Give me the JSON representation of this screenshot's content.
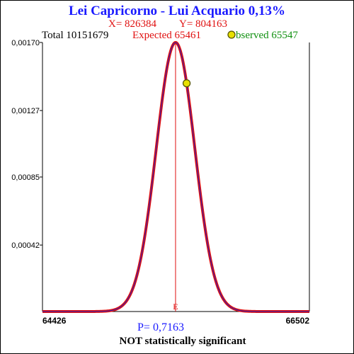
{
  "chart_data": {
    "type": "line",
    "title": "Lei Capricorno - Lui Acquario  0,13%",
    "x_label_text": "X= 826384",
    "y_label_text": "Y= 804163",
    "total_label": "Total  10151679",
    "expected_label": "Expected  65461",
    "observed_label": "bserved  65547",
    "mean": 65461,
    "sd": 150,
    "observed_x": 65547,
    "xlim": [
      64426,
      66502
    ],
    "ylim": [
      0,
      0.0017
    ],
    "yticks": [
      "0,00170",
      "0,00127",
      "0,00085",
      "0,00042"
    ],
    "ytick_values": [
      0.0017,
      0.00127,
      0.00085,
      0.00042
    ],
    "xticks": [
      "64426",
      "66502"
    ],
    "expected_marker": "E",
    "p_value": "P= 0,7163",
    "verdict": "NOT statistically significant",
    "grid": false,
    "colors": {
      "title": "#1a1aff",
      "xy": "#e01010",
      "total": "#000000",
      "expected": "#e01010",
      "observed": "#109010",
      "curve_outer": "#e01010",
      "curve_inner": "#2020c0",
      "marker_fill": "#e8e000",
      "p_value": "#1a1aff"
    }
  }
}
